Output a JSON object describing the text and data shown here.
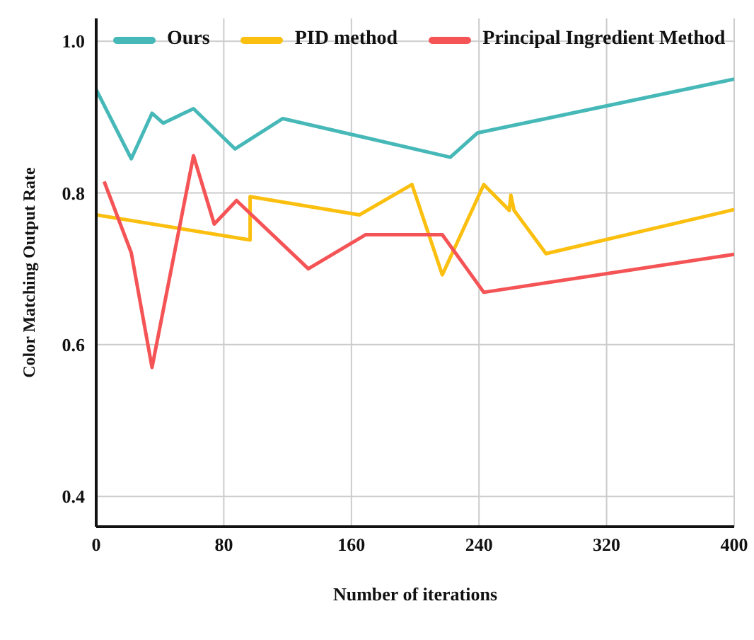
{
  "chart_data": {
    "type": "line",
    "xlabel": "Number of iterations",
    "ylabel": "Color Matching Output Rate",
    "xlim": [
      0,
      400
    ],
    "xticks": [
      0,
      80,
      160,
      240,
      320,
      400
    ],
    "ylim": [
      0.36,
      1.03
    ],
    "yticks": [
      0.4,
      0.6,
      0.8,
      {
        "value": 1,
        "label": "1.0"
      }
    ],
    "grid": true,
    "legend": "top",
    "marker": "none",
    "line_style": "solid",
    "series": [
      {
        "name": "Ours",
        "color": "#47b8b8",
        "x": [
          0,
          22,
          35,
          42,
          61,
          87,
          117,
          222,
          239,
          400
        ],
        "values": [
          0.936,
          0.845,
          0.905,
          0.892,
          0.911,
          0.858,
          0.898,
          0.847,
          0.879,
          0.95
        ]
      },
      {
        "name": "PID method",
        "color": "#fbbf10",
        "x": [
          0,
          96.5,
          96.5,
          165,
          198,
          217,
          243,
          259,
          260,
          262,
          282,
          400
        ],
        "values": [
          0.771,
          0.738,
          0.795,
          0.771,
          0.811,
          0.692,
          0.811,
          0.777,
          0.797,
          0.777,
          0.72,
          0.778
        ]
      },
      {
        "name": "Principal Ingredient Method",
        "color": "#f55456",
        "x": [
          5,
          22,
          35,
          61,
          74,
          88,
          133,
          169,
          217,
          243,
          400
        ],
        "values": [
          0.815,
          0.721,
          0.57,
          0.849,
          0.759,
          0.79,
          0.7,
          0.745,
          0.745,
          0.669,
          0.719
        ]
      }
    ]
  }
}
